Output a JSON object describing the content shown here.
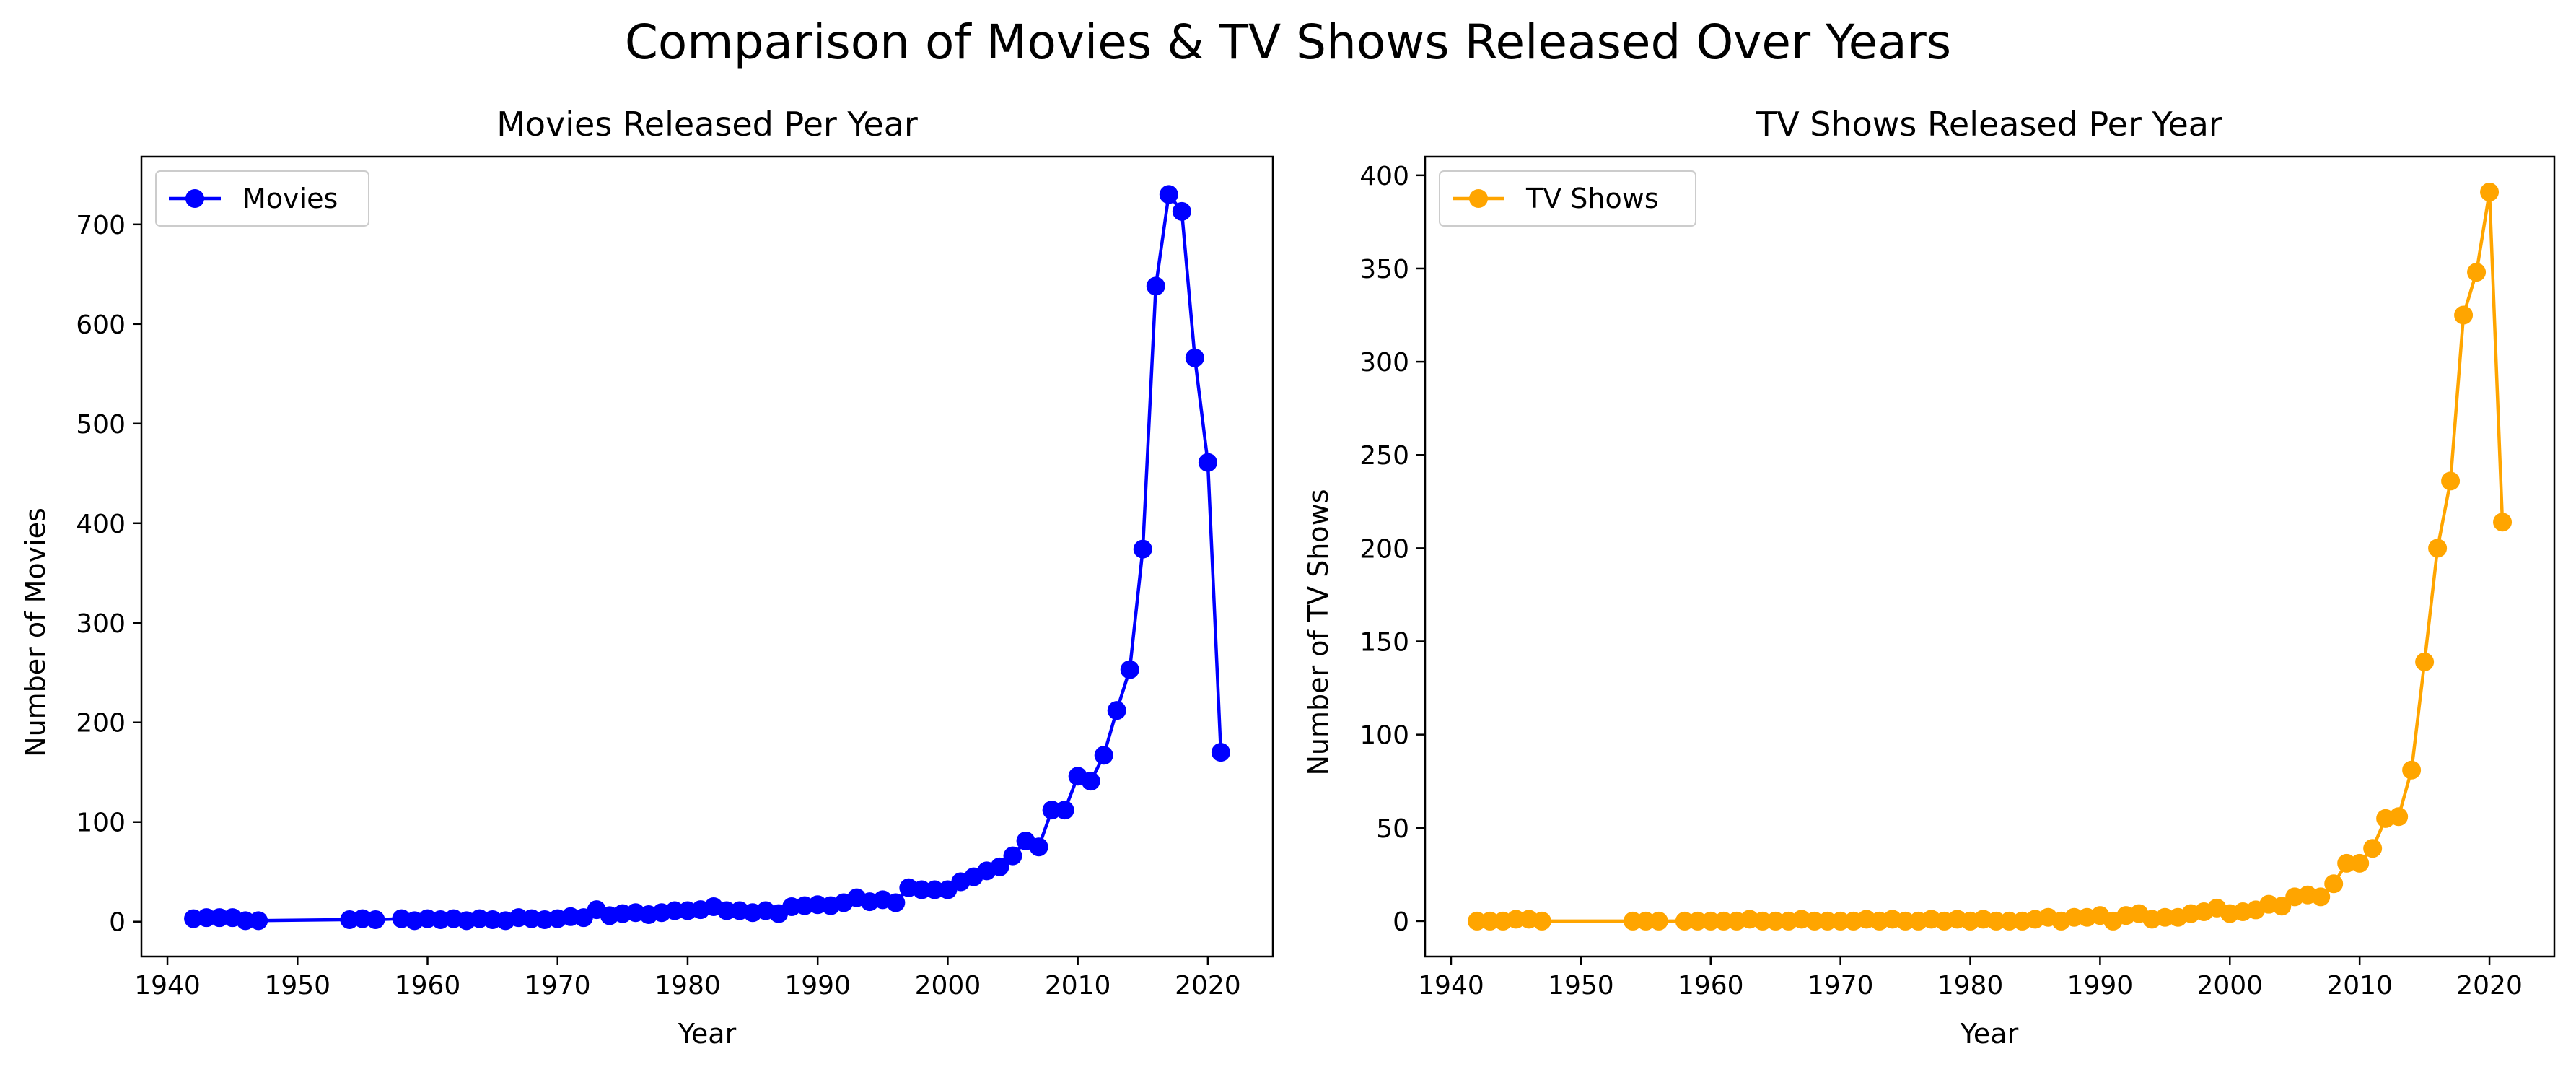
{
  "figure": {
    "suptitle": "Comparison of Movies & TV Shows Released Over Years"
  },
  "chart_data": [
    {
      "type": "line",
      "title": "Movies Released Per Year",
      "xlabel": "Year",
      "ylabel": "Number of Movies",
      "xlim": [
        1938,
        2025
      ],
      "ylim": [
        -35,
        768
      ],
      "xticks": [
        1940,
        1950,
        1960,
        1970,
        1980,
        1990,
        2000,
        2010,
        2020
      ],
      "yticks": [
        0,
        100,
        200,
        300,
        400,
        500,
        600,
        700
      ],
      "legend_position": "upper-left",
      "grid": false,
      "series": [
        {
          "name": "Movies",
          "color": "#0000ff",
          "marker": "circle",
          "x": [
            1942,
            1943,
            1944,
            1945,
            1946,
            1947,
            1954,
            1955,
            1956,
            1958,
            1959,
            1960,
            1961,
            1962,
            1963,
            1964,
            1965,
            1966,
            1967,
            1968,
            1969,
            1970,
            1971,
            1972,
            1973,
            1974,
            1975,
            1976,
            1977,
            1978,
            1979,
            1980,
            1981,
            1982,
            1983,
            1984,
            1985,
            1986,
            1987,
            1988,
            1989,
            1990,
            1991,
            1992,
            1993,
            1994,
            1995,
            1996,
            1997,
            1998,
            1999,
            2000,
            2001,
            2002,
            2003,
            2004,
            2005,
            2006,
            2007,
            2008,
            2009,
            2010,
            2011,
            2012,
            2013,
            2014,
            2015,
            2016,
            2017,
            2018,
            2019,
            2020,
            2021
          ],
          "y": [
            3,
            4,
            4,
            4,
            1,
            1,
            2,
            3,
            2,
            3,
            1,
            3,
            2,
            3,
            1,
            3,
            2,
            1,
            4,
            3,
            2,
            3,
            5,
            4,
            12,
            6,
            8,
            9,
            7,
            9,
            11,
            11,
            12,
            15,
            11,
            11,
            9,
            11,
            8,
            15,
            16,
            17,
            16,
            19,
            24,
            20,
            22,
            19,
            34,
            32,
            32,
            32,
            40,
            45,
            51,
            55,
            66,
            81,
            75,
            112,
            112,
            146,
            141,
            167,
            212,
            253,
            374,
            638,
            730,
            713,
            566,
            461,
            170
          ]
        }
      ]
    },
    {
      "type": "line",
      "title": "TV Shows Released Per Year",
      "xlabel": "Year",
      "ylabel": "Number of TV Shows",
      "xlim": [
        1938,
        2025
      ],
      "ylim": [
        -19,
        410
      ],
      "xticks": [
        1940,
        1950,
        1960,
        1970,
        1980,
        1990,
        2000,
        2010,
        2020
      ],
      "yticks": [
        0,
        50,
        100,
        150,
        200,
        250,
        300,
        350,
        400
      ],
      "legend_position": "upper-left",
      "grid": false,
      "series": [
        {
          "name": "TV Shows",
          "color": "#ffa500",
          "marker": "circle",
          "x": [
            1942,
            1943,
            1944,
            1945,
            1946,
            1947,
            1954,
            1955,
            1956,
            1958,
            1959,
            1960,
            1961,
            1962,
            1963,
            1964,
            1965,
            1966,
            1967,
            1968,
            1969,
            1970,
            1971,
            1972,
            1973,
            1974,
            1975,
            1976,
            1977,
            1978,
            1979,
            1980,
            1981,
            1982,
            1983,
            1984,
            1985,
            1986,
            1987,
            1988,
            1989,
            1990,
            1991,
            1992,
            1993,
            1994,
            1995,
            1996,
            1997,
            1998,
            1999,
            2000,
            2001,
            2002,
            2003,
            2004,
            2005,
            2006,
            2007,
            2008,
            2009,
            2010,
            2011,
            2012,
            2013,
            2014,
            2015,
            2016,
            2017,
            2018,
            2019,
            2020,
            2021
          ],
          "y": [
            0,
            0,
            0,
            1,
            1,
            0,
            0,
            0,
            0,
            0,
            0,
            0,
            0,
            0,
            1,
            0,
            0,
            0,
            1,
            0,
            0,
            0,
            0,
            1,
            0,
            1,
            0,
            0,
            1,
            0,
            1,
            0,
            1,
            0,
            0,
            0,
            1,
            2,
            0,
            2,
            2,
            3,
            0,
            3,
            4,
            1,
            2,
            2,
            4,
            5,
            7,
            4,
            5,
            6,
            9,
            8,
            13,
            14,
            13,
            20,
            31,
            31,
            39,
            55,
            56,
            81,
            139,
            200,
            236,
            325,
            348,
            391,
            214
          ]
        }
      ]
    }
  ]
}
